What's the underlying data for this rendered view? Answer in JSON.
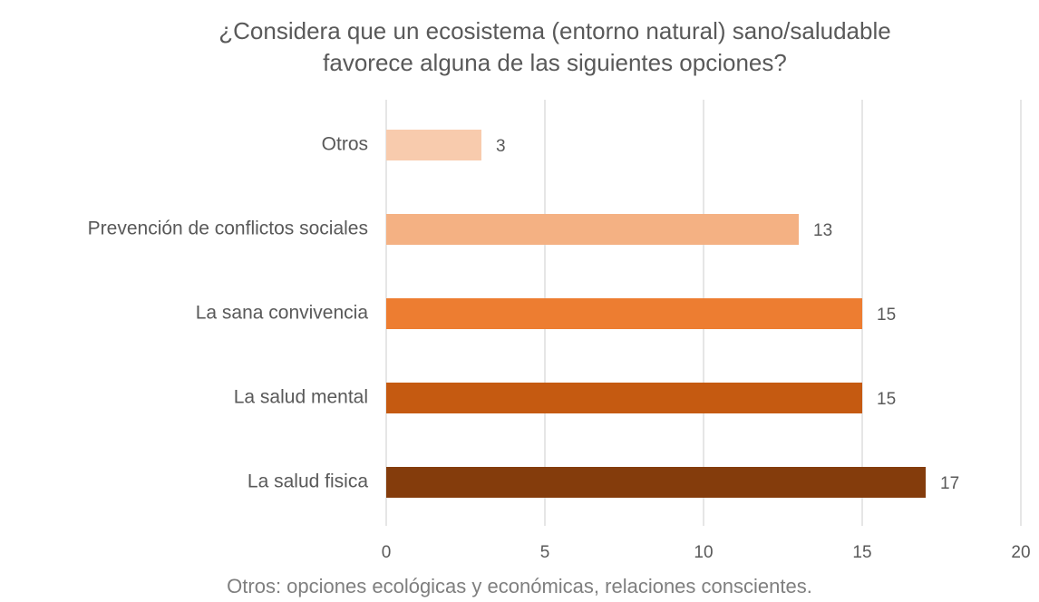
{
  "chart_data": {
    "type": "barh",
    "title": [
      "¿Considera que un ecosistema (entorno natural) sano/saludable",
      "favorece alguna de las siguientes opciones?"
    ],
    "categories": [
      "Otros",
      "Prevención de conflictos sociales",
      "La sana convivencia",
      "La salud mental",
      "La salud fisica"
    ],
    "values": [
      3,
      13,
      15,
      15,
      17
    ],
    "colors": [
      "#F8CBAD",
      "#F4B183",
      "#ED7D31",
      "#C55A11",
      "#843C0C"
    ],
    "xlim": [
      0,
      20
    ],
    "xticks": [
      0,
      5,
      10,
      15,
      20
    ],
    "grid": true,
    "annotations": [
      "Otros: opciones ecológicas y económicas, relaciones conscientes."
    ]
  }
}
